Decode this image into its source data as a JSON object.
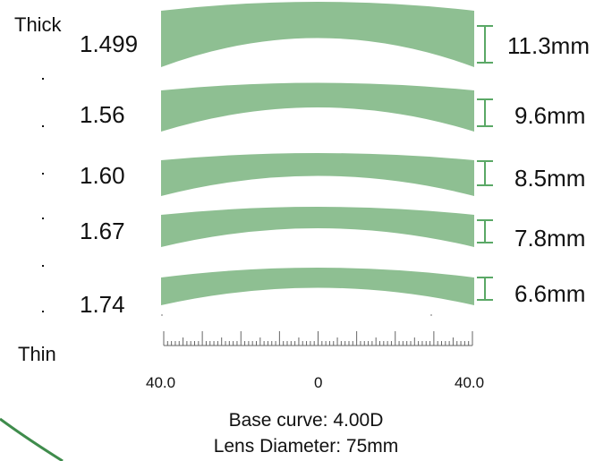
{
  "scale": {
    "thick_label": "Thick",
    "thin_label": "Thin"
  },
  "lenses": [
    {
      "index": "1.499",
      "thickness": "11.3mm"
    },
    {
      "index": "1.56",
      "thickness": "9.6mm"
    },
    {
      "index": "1.60",
      "thickness": "8.5mm"
    },
    {
      "index": "1.67",
      "thickness": "7.8mm"
    },
    {
      "index": "1.74",
      "thickness": "6.6mm"
    }
  ],
  "ruler": {
    "left": "40.0",
    "center": "0",
    "right": "40.0"
  },
  "info": {
    "base_curve": "Base curve: 4.00D",
    "diameter": "Lens Diameter: 75mm"
  },
  "colors": {
    "lens_fill": "#8ebf92",
    "marker": "#5aa866",
    "arc": "#3f8c4c"
  }
}
